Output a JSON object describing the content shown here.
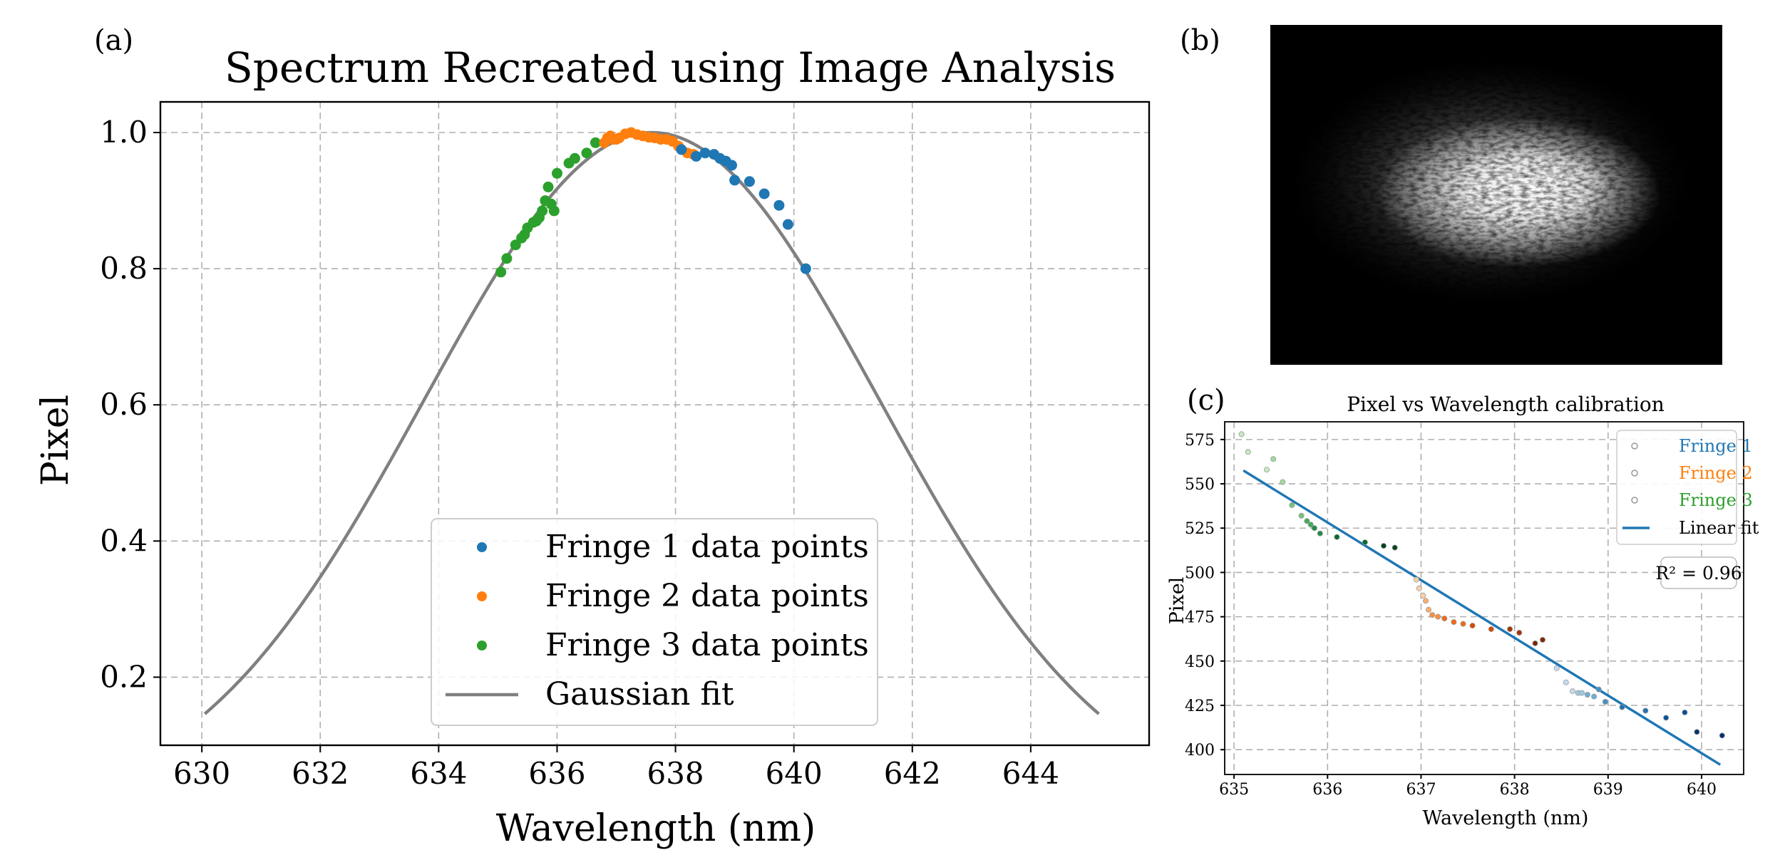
{
  "panels": {
    "a": "(a)",
    "b": "(b)",
    "c": "(c)"
  },
  "colors": {
    "fringe1": "#1f77b4",
    "fringe2": "#ff7f0e",
    "fringe3": "#2ca02c",
    "gauss": "#808080",
    "fit": "#1f77b4"
  },
  "chart_data": [
    {
      "id": "spectrum",
      "type": "scatter",
      "title": "Spectrum Recreated using Image Analysis",
      "xlabel": "Wavelength (nm)",
      "ylabel": "Pixel",
      "xlim": [
        629.3,
        646.0
      ],
      "ylim": [
        0.1,
        1.045
      ],
      "xticks": [
        630,
        632,
        634,
        636,
        638,
        640,
        642,
        644
      ],
      "yticks": [
        0.2,
        0.4,
        0.6,
        0.8,
        1.0
      ],
      "ytick_labels": [
        "0.2",
        "0.4",
        "0.6",
        "0.8",
        "1.0"
      ],
      "grid": true,
      "legend_position": "lower-center",
      "series": [
        {
          "name": "Fringe 1 data points",
          "color_key": "fringe1",
          "x": [
            638.1,
            638.35,
            638.5,
            638.65,
            638.75,
            638.85,
            638.95,
            639.0,
            639.25,
            639.5,
            639.75,
            639.9,
            640.2
          ],
          "y": [
            0.975,
            0.965,
            0.97,
            0.968,
            0.962,
            0.958,
            0.952,
            0.93,
            0.928,
            0.91,
            0.893,
            0.865,
            0.8
          ]
        },
        {
          "name": "Fringe 2 data points",
          "color_key": "fringe2",
          "x": [
            636.8,
            636.9,
            636.95,
            637.05,
            637.15,
            637.25,
            637.35,
            637.45,
            637.55,
            637.65,
            637.75,
            637.85,
            637.95,
            638.05,
            638.2,
            638.3,
            636.85,
            637.0
          ],
          "y": [
            0.985,
            0.995,
            0.99,
            0.992,
            0.998,
            1.0,
            0.997,
            0.995,
            0.993,
            0.992,
            0.99,
            0.99,
            0.987,
            0.98,
            0.97,
            0.968,
            0.992,
            0.99
          ]
        },
        {
          "name": "Fringe 3 data points",
          "color_key": "fringe3",
          "x": [
            635.05,
            635.15,
            635.3,
            635.4,
            635.5,
            635.6,
            635.7,
            635.75,
            635.8,
            635.85,
            635.9,
            635.95,
            636.0,
            636.2,
            636.3,
            636.5,
            636.65,
            635.45,
            635.65
          ],
          "y": [
            0.795,
            0.815,
            0.835,
            0.845,
            0.86,
            0.868,
            0.875,
            0.885,
            0.9,
            0.92,
            0.895,
            0.885,
            0.94,
            0.955,
            0.962,
            0.97,
            0.985,
            0.85,
            0.87
          ]
        },
        {
          "name": "Gaussian fit",
          "color_key": "gauss",
          "kind": "gaussian",
          "mu": 637.6,
          "sigma": 3.85,
          "amplitude": 1.0,
          "x_range": [
            630.05,
            645.15
          ]
        }
      ]
    },
    {
      "id": "calibration",
      "type": "scatter",
      "title": "Pixel vs Wavelength calibration",
      "xlabel": "Wavelength (nm)",
      "ylabel": "Pixel",
      "xlim": [
        634.9,
        640.45
      ],
      "ylim": [
        386,
        585
      ],
      "xticks": [
        635,
        636,
        637,
        638,
        639,
        640
      ],
      "yticks": [
        400,
        425,
        450,
        475,
        500,
        525,
        550,
        575
      ],
      "grid": true,
      "legend_position": "top-right",
      "annotation": "R² = 0.96",
      "series": [
        {
          "name": "Fringe 1",
          "color_key": "fringe1",
          "x": [
            638.45,
            638.55,
            638.62,
            638.68,
            638.72,
            638.78,
            638.85,
            638.9,
            638.97,
            639.15,
            639.4,
            639.62,
            639.82,
            639.95,
            640.22
          ],
          "y": [
            446,
            438,
            433,
            432,
            432,
            431,
            430,
            434,
            427,
            424,
            422,
            418,
            421,
            410,
            408
          ]
        },
        {
          "name": "Fringe 2",
          "color_key": "fringe2",
          "x": [
            636.95,
            636.98,
            637.02,
            637.05,
            637.08,
            637.12,
            637.18,
            637.25,
            637.35,
            637.45,
            637.55,
            637.75,
            637.95,
            638.05,
            638.22,
            638.3
          ],
          "y": [
            496,
            491,
            487,
            484,
            479,
            476,
            475,
            474,
            472,
            471,
            470,
            468,
            468,
            466,
            460,
            462
          ]
        },
        {
          "name": "Fringe 3",
          "color_key": "fringe3",
          "x": [
            635.08,
            635.15,
            635.35,
            635.42,
            635.52,
            635.62,
            635.72,
            635.78,
            635.82,
            635.86,
            635.92,
            636.1,
            636.4,
            636.6,
            636.72
          ],
          "y": [
            578,
            568,
            558,
            564,
            551,
            538,
            532,
            529,
            527,
            525,
            522,
            520,
            517,
            515,
            514
          ]
        },
        {
          "name": "Linear fit",
          "color_key": "fit",
          "kind": "line",
          "x": [
            635.1,
            640.2
          ],
          "y": [
            557.5,
            391.5
          ]
        }
      ]
    }
  ]
}
